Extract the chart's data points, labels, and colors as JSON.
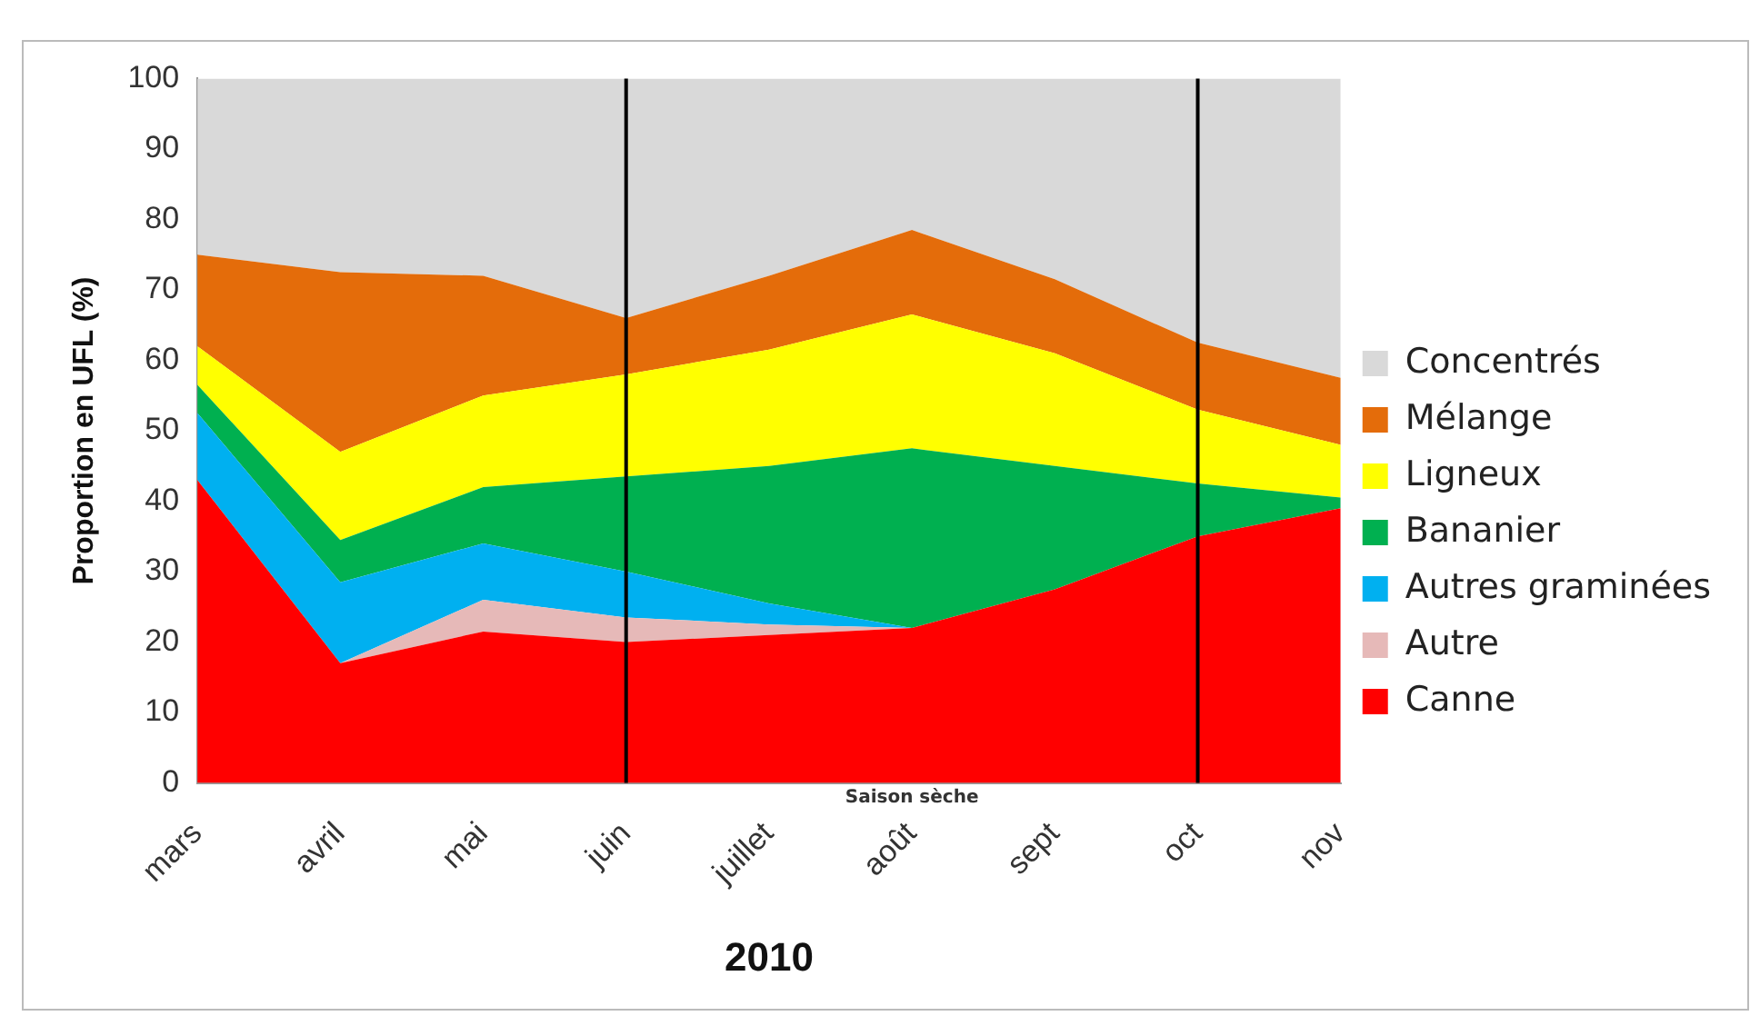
{
  "chart_data": {
    "type": "area",
    "stacked": true,
    "xlabel": "2010",
    "ylabel": "Proportion en UFL (%)",
    "categories": [
      "mars",
      "avril",
      "mai",
      "juin",
      "juillet",
      "août",
      "sept",
      "oct",
      "nov"
    ],
    "series": [
      {
        "name": "Canne",
        "color": "#ff0000",
        "values": [
          43,
          17,
          21.5,
          20,
          21,
          22,
          27.5,
          35,
          39
        ]
      },
      {
        "name": "Autre",
        "color": "#e6b9b8",
        "values": [
          0,
          0,
          4.5,
          3.5,
          1.5,
          0,
          0,
          0,
          0
        ]
      },
      {
        "name": "Autres graminées",
        "color": "#00b0f0",
        "values": [
          9.5,
          11.5,
          8,
          6.5,
          3,
          0,
          0,
          0,
          0
        ]
      },
      {
        "name": "Bananier",
        "color": "#00b050",
        "values": [
          4,
          6,
          8,
          13.5,
          19.5,
          25.5,
          17.5,
          7.5,
          1.5
        ]
      },
      {
        "name": "Ligneux",
        "color": "#ffff00",
        "values": [
          5.5,
          12.5,
          13,
          14.5,
          16.5,
          19,
          16,
          10.5,
          7.5
        ]
      },
      {
        "name": "Mélange",
        "color": "#e46c0a",
        "values": [
          13,
          25.5,
          17,
          8,
          10.5,
          12,
          10.5,
          9.5,
          9.5
        ]
      },
      {
        "name": "Concentrés",
        "color": "#d9d9d9",
        "values": [
          25,
          27.5,
          28,
          34,
          28,
          21.5,
          28.5,
          37.5,
          42.5
        ]
      }
    ],
    "ylim": [
      0,
      100
    ],
    "yticks": [
      0,
      10,
      20,
      30,
      40,
      50,
      60,
      70,
      80,
      90,
      100
    ],
    "grid": false,
    "legend": "right",
    "ref_lines": [
      {
        "axis": "x",
        "value": "juin",
        "color": "#000000"
      },
      {
        "axis": "x",
        "value": "oct",
        "color": "#000000"
      }
    ],
    "annotations": [
      "Saison sèche"
    ]
  }
}
